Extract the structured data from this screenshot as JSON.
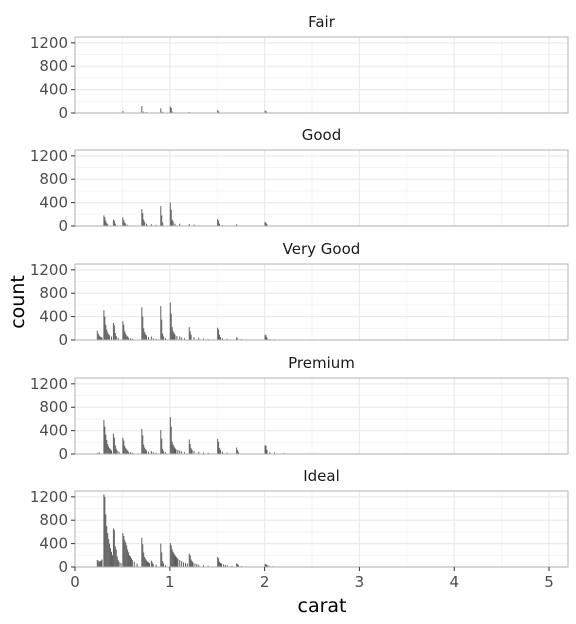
{
  "chart_data": {
    "type": "bar",
    "subtype": "faceted-histogram",
    "title": "",
    "xlabel": "carat",
    "ylabel": "count",
    "xlim": [
      0,
      5.2
    ],
    "ylim": [
      0,
      1300
    ],
    "x_ticks": [
      0,
      1,
      2,
      3,
      4,
      5
    ],
    "y_ticks": [
      0,
      400,
      800,
      1200
    ],
    "grid": true,
    "bar_color": "#595959",
    "facets": [
      {
        "name": "Fair",
        "bins": [
          [
            0.3,
            8
          ],
          [
            0.4,
            10
          ],
          [
            0.45,
            6
          ],
          [
            0.5,
            35
          ],
          [
            0.55,
            4
          ],
          [
            0.7,
            120
          ],
          [
            0.72,
            25
          ],
          [
            0.75,
            15
          ],
          [
            0.9,
            80
          ],
          [
            0.92,
            20
          ],
          [
            1.0,
            110
          ],
          [
            1.01,
            90
          ],
          [
            1.02,
            25
          ],
          [
            1.05,
            10
          ],
          [
            1.2,
            15
          ],
          [
            1.5,
            50
          ],
          [
            1.51,
            30
          ],
          [
            1.52,
            10
          ],
          [
            2.0,
            40
          ],
          [
            2.01,
            30
          ],
          [
            2.02,
            10
          ]
        ]
      },
      {
        "name": "Good",
        "bins": [
          [
            0.3,
            180
          ],
          [
            0.31,
            150
          ],
          [
            0.32,
            90
          ],
          [
            0.33,
            50
          ],
          [
            0.34,
            30
          ],
          [
            0.4,
            110
          ],
          [
            0.41,
            90
          ],
          [
            0.42,
            40
          ],
          [
            0.5,
            150
          ],
          [
            0.51,
            100
          ],
          [
            0.52,
            60
          ],
          [
            0.53,
            40
          ],
          [
            0.55,
            20
          ],
          [
            0.7,
            290
          ],
          [
            0.71,
            220
          ],
          [
            0.72,
            110
          ],
          [
            0.73,
            70
          ],
          [
            0.75,
            40
          ],
          [
            0.8,
            30
          ],
          [
            0.85,
            20
          ],
          [
            0.9,
            340
          ],
          [
            0.91,
            180
          ],
          [
            0.92,
            60
          ],
          [
            1.0,
            400
          ],
          [
            1.01,
            280
          ],
          [
            1.02,
            110
          ],
          [
            1.03,
            80
          ],
          [
            1.05,
            40
          ],
          [
            1.1,
            40
          ],
          [
            1.2,
            35
          ],
          [
            1.25,
            25
          ],
          [
            1.5,
            120
          ],
          [
            1.51,
            90
          ],
          [
            1.52,
            40
          ],
          [
            1.55,
            15
          ],
          [
            1.7,
            30
          ],
          [
            2.0,
            70
          ],
          [
            2.01,
            55
          ],
          [
            2.02,
            30
          ]
        ]
      },
      {
        "name": "Very Good",
        "bins": [
          [
            0.23,
            160
          ],
          [
            0.24,
            110
          ],
          [
            0.25,
            80
          ],
          [
            0.26,
            60
          ],
          [
            0.27,
            50
          ],
          [
            0.28,
            40
          ],
          [
            0.3,
            510
          ],
          [
            0.31,
            400
          ],
          [
            0.32,
            260
          ],
          [
            0.33,
            180
          ],
          [
            0.34,
            130
          ],
          [
            0.35,
            100
          ],
          [
            0.36,
            80
          ],
          [
            0.38,
            60
          ],
          [
            0.4,
            290
          ],
          [
            0.41,
            250
          ],
          [
            0.42,
            120
          ],
          [
            0.43,
            70
          ],
          [
            0.45,
            40
          ],
          [
            0.5,
            320
          ],
          [
            0.51,
            260
          ],
          [
            0.52,
            150
          ],
          [
            0.53,
            110
          ],
          [
            0.54,
            80
          ],
          [
            0.55,
            60
          ],
          [
            0.56,
            40
          ],
          [
            0.58,
            30
          ],
          [
            0.6,
            20
          ],
          [
            0.7,
            560
          ],
          [
            0.71,
            400
          ],
          [
            0.72,
            200
          ],
          [
            0.73,
            140
          ],
          [
            0.74,
            100
          ],
          [
            0.75,
            80
          ],
          [
            0.77,
            50
          ],
          [
            0.8,
            60
          ],
          [
            0.82,
            30
          ],
          [
            0.85,
            20
          ],
          [
            0.9,
            580
          ],
          [
            0.91,
            350
          ],
          [
            0.92,
            110
          ],
          [
            0.93,
            60
          ],
          [
            0.95,
            30
          ],
          [
            1.0,
            640
          ],
          [
            1.01,
            450
          ],
          [
            1.02,
            220
          ],
          [
            1.03,
            150
          ],
          [
            1.04,
            120
          ],
          [
            1.05,
            90
          ],
          [
            1.07,
            70
          ],
          [
            1.1,
            60
          ],
          [
            1.12,
            40
          ],
          [
            1.15,
            30
          ],
          [
            1.2,
            220
          ],
          [
            1.21,
            150
          ],
          [
            1.22,
            90
          ],
          [
            1.25,
            50
          ],
          [
            1.3,
            40
          ],
          [
            1.35,
            25
          ],
          [
            1.4,
            15
          ],
          [
            1.5,
            210
          ],
          [
            1.51,
            180
          ],
          [
            1.52,
            90
          ],
          [
            1.53,
            50
          ],
          [
            1.55,
            30
          ],
          [
            1.6,
            20
          ],
          [
            1.7,
            45
          ],
          [
            1.71,
            30
          ],
          [
            1.75,
            15
          ],
          [
            1.8,
            10
          ],
          [
            2.0,
            90
          ],
          [
            2.01,
            80
          ],
          [
            2.02,
            40
          ],
          [
            2.05,
            15
          ],
          [
            2.1,
            12
          ],
          [
            2.2,
            10
          ],
          [
            2.3,
            8
          ],
          [
            2.4,
            6
          ],
          [
            2.5,
            5
          ],
          [
            2.6,
            4
          ],
          [
            2.7,
            4
          ],
          [
            2.8,
            3
          ],
          [
            2.9,
            3
          ],
          [
            3.0,
            4
          ],
          [
            3.1,
            3
          ],
          [
            3.2,
            2
          ],
          [
            3.4,
            2
          ],
          [
            3.6,
            1
          ],
          [
            4.0,
            2
          ]
        ]
      },
      {
        "name": "Premium",
        "bins": [
          [
            0.23,
            20
          ],
          [
            0.25,
            30
          ],
          [
            0.3,
            580
          ],
          [
            0.31,
            470
          ],
          [
            0.32,
            330
          ],
          [
            0.33,
            240
          ],
          [
            0.34,
            170
          ],
          [
            0.35,
            130
          ],
          [
            0.36,
            100
          ],
          [
            0.37,
            80
          ],
          [
            0.38,
            60
          ],
          [
            0.4,
            350
          ],
          [
            0.41,
            280
          ],
          [
            0.42,
            150
          ],
          [
            0.43,
            90
          ],
          [
            0.44,
            60
          ],
          [
            0.46,
            40
          ],
          [
            0.5,
            280
          ],
          [
            0.51,
            230
          ],
          [
            0.52,
            140
          ],
          [
            0.53,
            100
          ],
          [
            0.54,
            80
          ],
          [
            0.55,
            60
          ],
          [
            0.56,
            40
          ],
          [
            0.58,
            30
          ],
          [
            0.6,
            20
          ],
          [
            0.7,
            430
          ],
          [
            0.71,
            320
          ],
          [
            0.72,
            160
          ],
          [
            0.73,
            110
          ],
          [
            0.74,
            80
          ],
          [
            0.75,
            60
          ],
          [
            0.77,
            40
          ],
          [
            0.8,
            50
          ],
          [
            0.82,
            30
          ],
          [
            0.85,
            20
          ],
          [
            0.9,
            410
          ],
          [
            0.91,
            260
          ],
          [
            0.92,
            90
          ],
          [
            0.93,
            50
          ],
          [
            0.95,
            30
          ],
          [
            1.0,
            630
          ],
          [
            1.01,
            470
          ],
          [
            1.02,
            210
          ],
          [
            1.03,
            160
          ],
          [
            1.04,
            130
          ],
          [
            1.05,
            100
          ],
          [
            1.06,
            80
          ],
          [
            1.08,
            70
          ],
          [
            1.1,
            60
          ],
          [
            1.12,
            45
          ],
          [
            1.15,
            30
          ],
          [
            1.2,
            250
          ],
          [
            1.21,
            170
          ],
          [
            1.22,
            100
          ],
          [
            1.23,
            70
          ],
          [
            1.25,
            50
          ],
          [
            1.3,
            40
          ],
          [
            1.35,
            25
          ],
          [
            1.4,
            20
          ],
          [
            1.5,
            260
          ],
          [
            1.51,
            210
          ],
          [
            1.52,
            100
          ],
          [
            1.53,
            70
          ],
          [
            1.55,
            40
          ],
          [
            1.6,
            25
          ],
          [
            1.7,
            110
          ],
          [
            1.71,
            70
          ],
          [
            1.72,
            30
          ],
          [
            2.0,
            150
          ],
          [
            2.01,
            140
          ],
          [
            2.02,
            70
          ],
          [
            2.05,
            30
          ],
          [
            2.1,
            25
          ],
          [
            2.2,
            15
          ],
          [
            2.3,
            8
          ],
          [
            2.4,
            5
          ]
        ]
      },
      {
        "name": "Ideal",
        "bins": [
          [
            0.23,
            120
          ],
          [
            0.24,
            110
          ],
          [
            0.25,
            90
          ],
          [
            0.26,
            100
          ],
          [
            0.27,
            110
          ],
          [
            0.28,
            130
          ],
          [
            0.3,
            1240
          ],
          [
            0.31,
            1200
          ],
          [
            0.32,
            900
          ],
          [
            0.33,
            700
          ],
          [
            0.34,
            580
          ],
          [
            0.35,
            480
          ],
          [
            0.36,
            400
          ],
          [
            0.37,
            320
          ],
          [
            0.38,
            260
          ],
          [
            0.39,
            200
          ],
          [
            0.4,
            660
          ],
          [
            0.41,
            630
          ],
          [
            0.42,
            350
          ],
          [
            0.43,
            300
          ],
          [
            0.44,
            180
          ],
          [
            0.45,
            120
          ],
          [
            0.46,
            90
          ],
          [
            0.48,
            70
          ],
          [
            0.5,
            580
          ],
          [
            0.51,
            530
          ],
          [
            0.52,
            460
          ],
          [
            0.53,
            420
          ],
          [
            0.54,
            370
          ],
          [
            0.55,
            300
          ],
          [
            0.56,
            250
          ],
          [
            0.57,
            200
          ],
          [
            0.58,
            180
          ],
          [
            0.59,
            150
          ],
          [
            0.6,
            120
          ],
          [
            0.62,
            90
          ],
          [
            0.65,
            60
          ],
          [
            0.7,
            500
          ],
          [
            0.71,
            390
          ],
          [
            0.72,
            250
          ],
          [
            0.73,
            170
          ],
          [
            0.74,
            140
          ],
          [
            0.75,
            110
          ],
          [
            0.76,
            90
          ],
          [
            0.77,
            80
          ],
          [
            0.78,
            70
          ],
          [
            0.8,
            110
          ],
          [
            0.81,
            80
          ],
          [
            0.82,
            50
          ],
          [
            0.85,
            40
          ],
          [
            0.9,
            400
          ],
          [
            0.91,
            250
          ],
          [
            0.92,
            100
          ],
          [
            0.93,
            60
          ],
          [
            0.95,
            30
          ],
          [
            1.0,
            410
          ],
          [
            1.01,
            370
          ],
          [
            1.02,
            300
          ],
          [
            1.03,
            260
          ],
          [
            1.04,
            230
          ],
          [
            1.05,
            200
          ],
          [
            1.06,
            180
          ],
          [
            1.07,
            160
          ],
          [
            1.08,
            140
          ],
          [
            1.1,
            120
          ],
          [
            1.12,
            100
          ],
          [
            1.14,
            80
          ],
          [
            1.16,
            70
          ],
          [
            1.18,
            60
          ],
          [
            1.2,
            230
          ],
          [
            1.21,
            200
          ],
          [
            1.22,
            130
          ],
          [
            1.23,
            100
          ],
          [
            1.24,
            80
          ],
          [
            1.26,
            60
          ],
          [
            1.28,
            50
          ],
          [
            1.3,
            40
          ],
          [
            1.35,
            30
          ],
          [
            1.4,
            20
          ],
          [
            1.5,
            170
          ],
          [
            1.51,
            150
          ],
          [
            1.52,
            90
          ],
          [
            1.53,
            70
          ],
          [
            1.54,
            60
          ],
          [
            1.56,
            45
          ],
          [
            1.58,
            35
          ],
          [
            1.6,
            30
          ],
          [
            1.65,
            20
          ],
          [
            1.7,
            60
          ],
          [
            1.71,
            50
          ],
          [
            1.72,
            30
          ],
          [
            1.75,
            15
          ],
          [
            1.8,
            10
          ],
          [
            2.0,
            50
          ],
          [
            2.01,
            45
          ],
          [
            2.02,
            30
          ],
          [
            2.03,
            25
          ],
          [
            2.05,
            15
          ],
          [
            2.08,
            12
          ],
          [
            2.1,
            10
          ],
          [
            2.15,
            8
          ],
          [
            2.2,
            6
          ],
          [
            2.25,
            4
          ],
          [
            2.3,
            2
          ]
        ]
      }
    ]
  }
}
